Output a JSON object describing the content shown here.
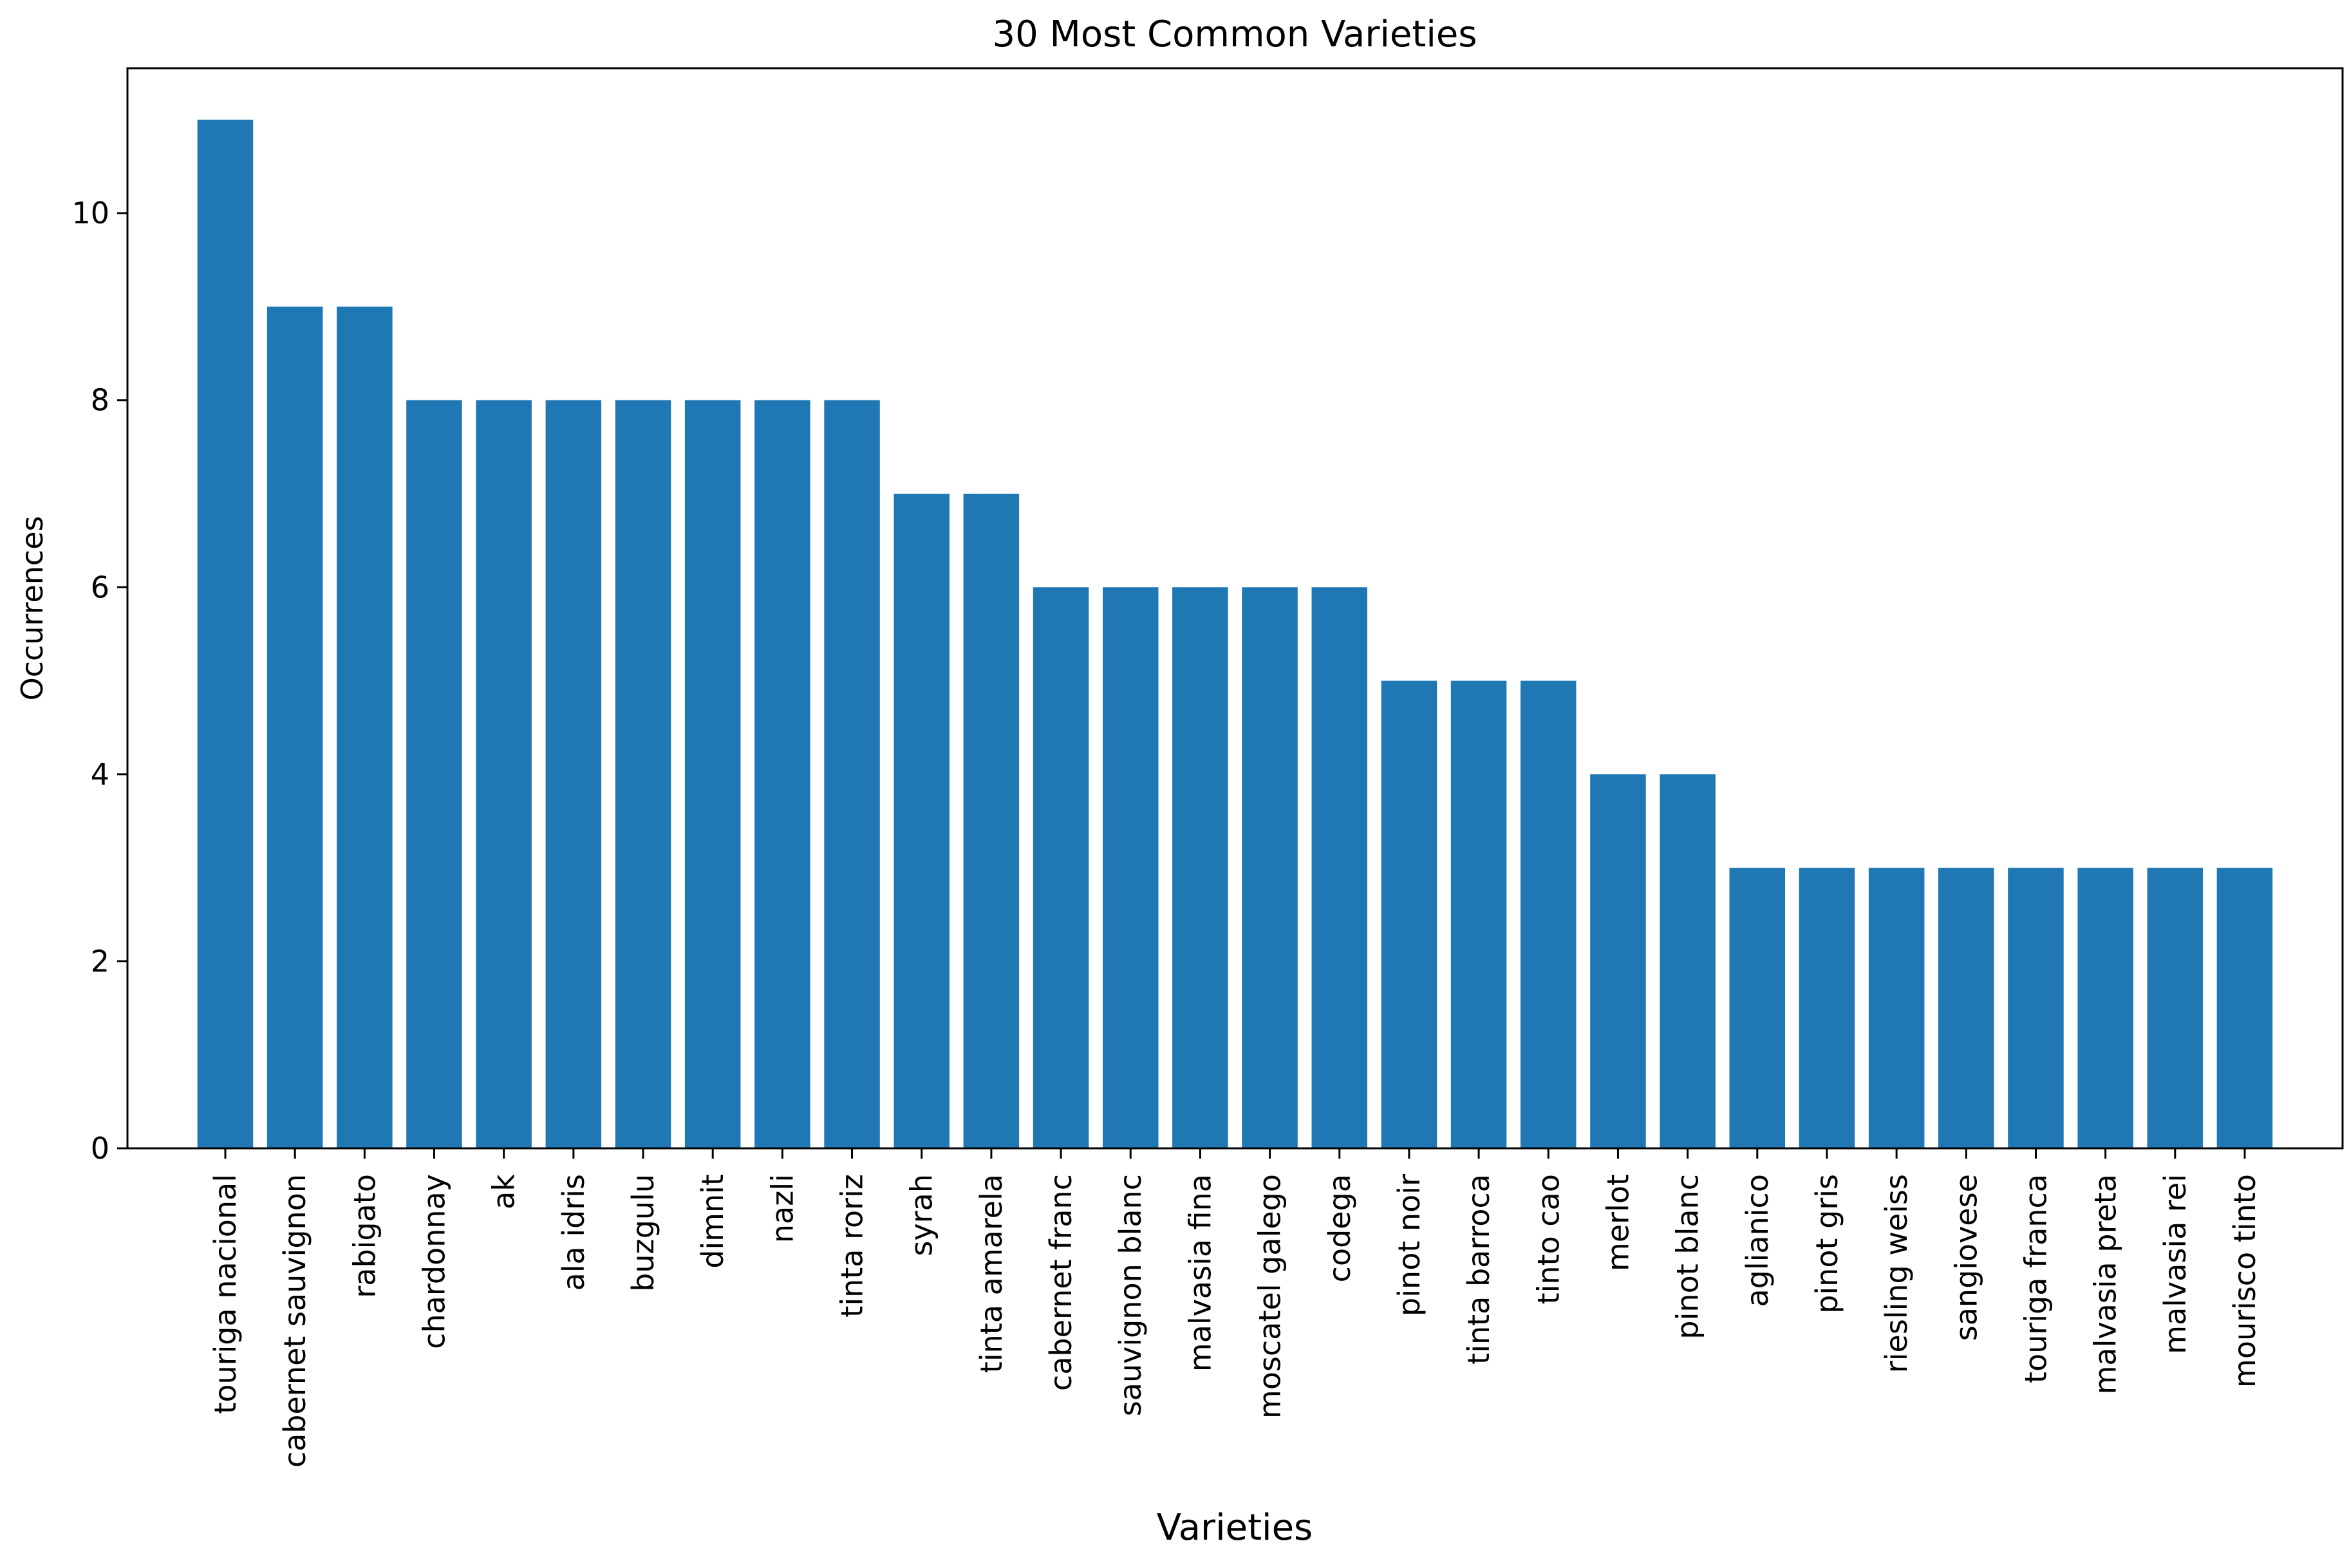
{
  "chart_data": {
    "type": "bar",
    "title": "30 Most Common Varieties",
    "xlabel": "Varieties",
    "ylabel": "Occurrences",
    "categories": [
      "touriga nacional",
      "cabernet sauvignon",
      "rabigato",
      "chardonnay",
      "ak",
      "ala idris",
      "buzgulu",
      "dimnit",
      "nazli",
      "tinta roriz",
      "syrah",
      "tinta amarela",
      "cabernet franc",
      "sauvignon blanc",
      "malvasia fina",
      "moscatel galego",
      "codega",
      "pinot noir",
      "tinta barroca",
      "tinto cao",
      "merlot",
      "pinot blanc",
      "aglianico",
      "pinot gris",
      "riesling weiss",
      "sangiovese",
      "touriga franca",
      "malvasia preta",
      "malvasia rei",
      "mourisco tinto"
    ],
    "values": [
      11,
      9,
      9,
      8,
      8,
      8,
      8,
      8,
      8,
      8,
      7,
      7,
      6,
      6,
      6,
      6,
      6,
      5,
      5,
      5,
      4,
      4,
      3,
      3,
      3,
      3,
      3,
      3,
      3,
      3
    ],
    "ylim": [
      0,
      11.55
    ],
    "yticks": [
      0,
      2,
      4,
      6,
      8,
      10
    ],
    "grid": false,
    "bar_color": "#1f77b4"
  }
}
